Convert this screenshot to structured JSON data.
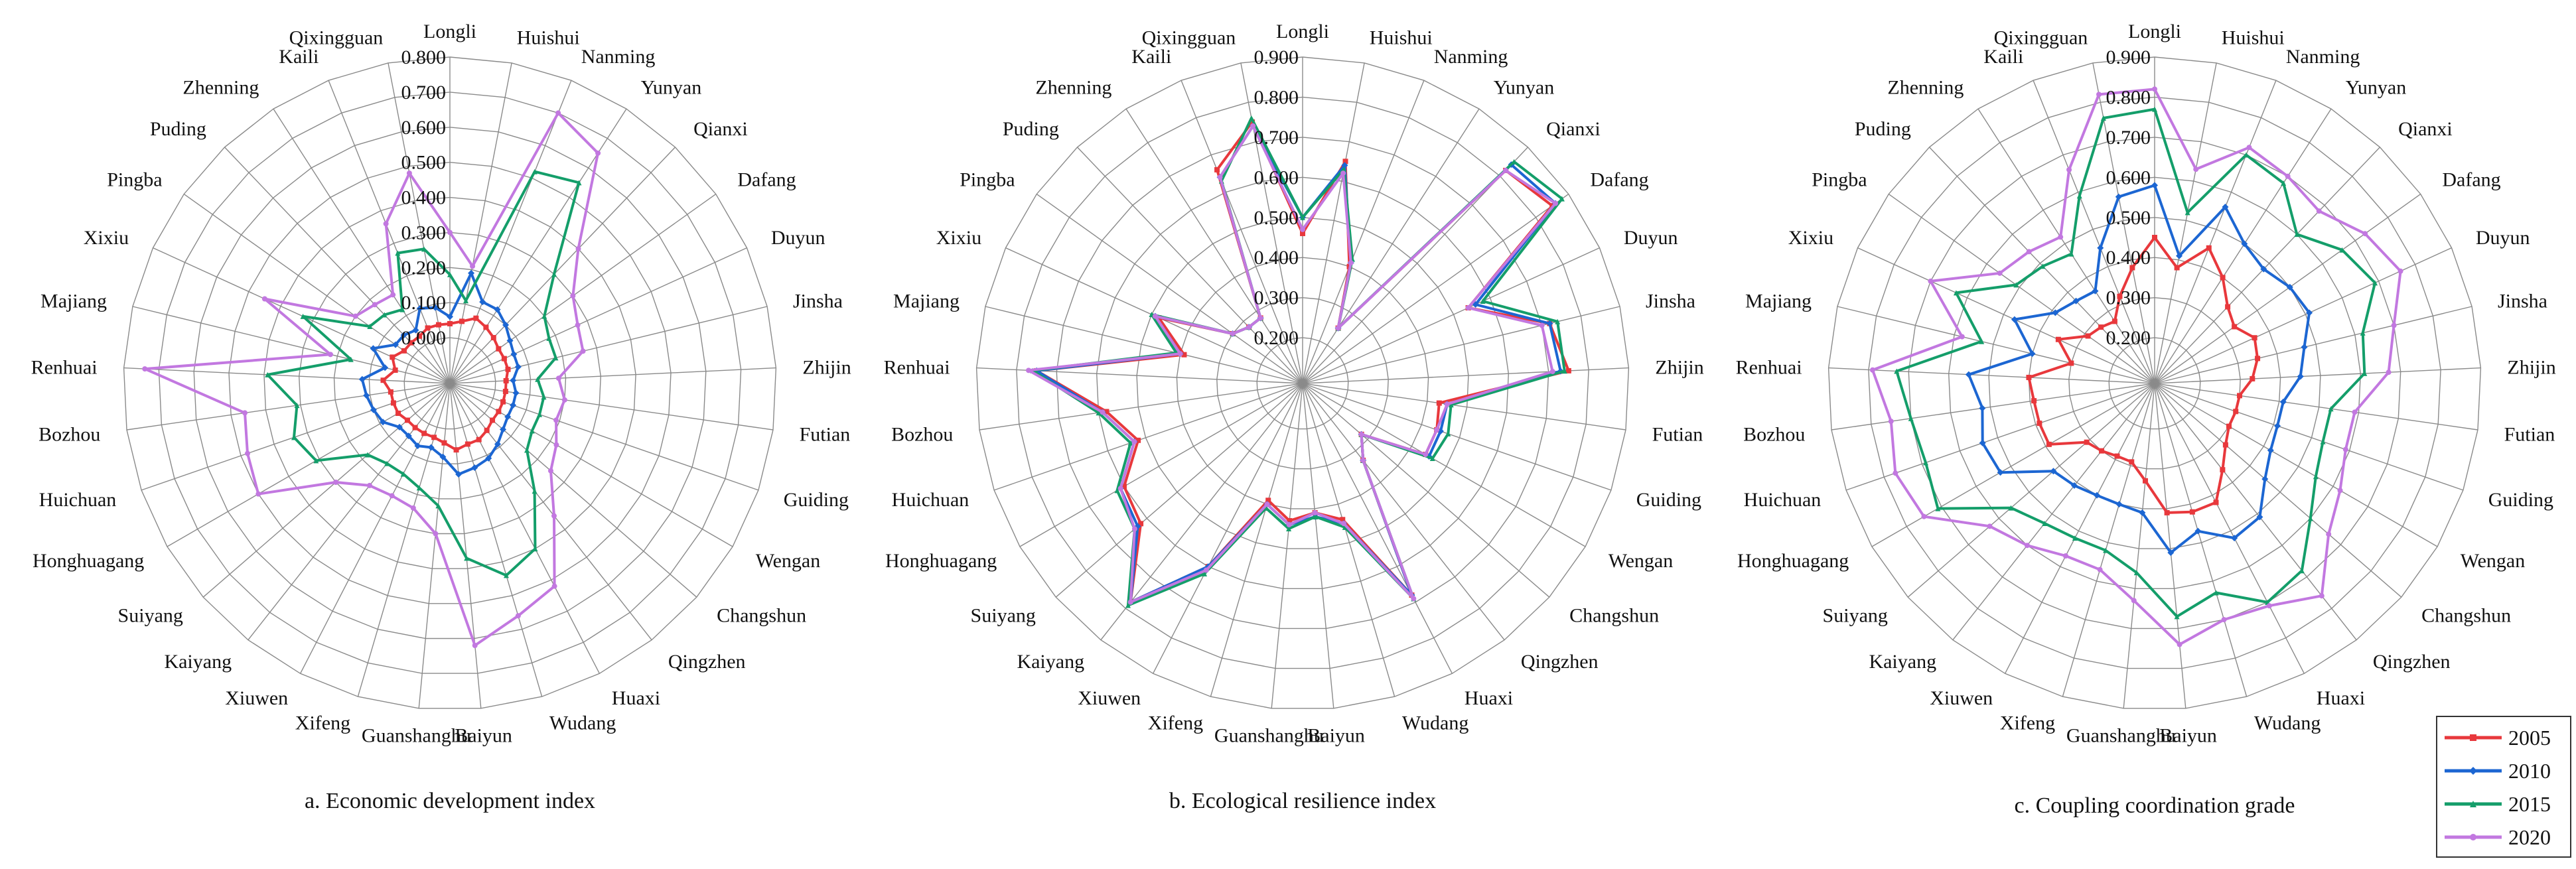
{
  "chart_data": [
    {
      "type": "radar",
      "caption": "a.   Economic development index",
      "rmin": 0,
      "rmax": 0.8,
      "ticks": [
        "0.000",
        "0.100",
        "0.200",
        "0.300",
        "0.400",
        "0.500",
        "0.600",
        "0.700",
        "0.800"
      ],
      "categories": [
        "Longli",
        "Huishui",
        "Nanming",
        "Yunyan",
        "Qianxi",
        "Dafang",
        "Duyun",
        "Jinsha",
        "Zhijin",
        "Futian",
        "Guiding",
        "Wengan",
        "Changshun",
        "Qingzhen",
        "Huaxi",
        "Wudang",
        "Baiyun",
        "Guanshanghu",
        "Xifeng",
        "Xiuwen",
        "Kaiyang",
        "Suiyang",
        "Honghuagang",
        "Huichuan",
        "Bozhou",
        "Renhuai",
        "Majiang",
        "Xixiu",
        "Pingba",
        "Puding",
        "Zhenning",
        "Kaili",
        "Qixingguan"
      ],
      "series": [
        {
          "name": "2005",
          "color": "#e8383c",
          "values": [
            0.04,
            0.05,
            0.07,
            0.06,
            0.05,
            0.04,
            0.04,
            0.04,
            0.03,
            0.03,
            0.03,
            0.03,
            0.03,
            0.04,
            0.05,
            0.05,
            0.06,
            0.04,
            0.03,
            0.03,
            0.03,
            0.03,
            0.04,
            0.04,
            0.04,
            0.06,
            0.03,
            0.05,
            0.03,
            0.03,
            0.03,
            0.04,
            0.04
          ]
        },
        {
          "name": "2010",
          "color": "#1c66d2",
          "values": [
            0.06,
            0.19,
            0.12,
            0.12,
            0.1,
            0.08,
            0.07,
            0.07,
            0.05,
            0.06,
            0.06,
            0.06,
            0.07,
            0.09,
            0.11,
            0.12,
            0.13,
            0.08,
            0.06,
            0.07,
            0.06,
            0.06,
            0.09,
            0.1,
            0.11,
            0.12,
            0.06,
            0.11,
            0.06,
            0.06,
            0.05,
            0.1,
            0.09
          ]
        },
        {
          "name": "2015",
          "color": "#149e6a",
          "values": [
            0.18,
            0.11,
            0.52,
            0.55,
            0.3,
            0.2,
            0.18,
            0.18,
            0.12,
            0.14,
            0.14,
            0.14,
            0.16,
            0.26,
            0.4,
            0.44,
            0.37,
            0.22,
            0.18,
            0.16,
            0.16,
            0.18,
            0.31,
            0.34,
            0.31,
            0.39,
            0.16,
            0.33,
            0.15,
            0.14,
            0.12,
            0.27,
            0.26
          ]
        },
        {
          "name": "2020",
          "color": "#c278e0",
          "values": [
            0.3,
            0.21,
            0.7,
            0.65,
            0.4,
            0.3,
            0.27,
            0.26,
            0.18,
            0.2,
            0.19,
            0.22,
            0.25,
            0.35,
            0.52,
            0.56,
            0.62,
            0.3,
            0.24,
            0.23,
            0.24,
            0.3,
            0.5,
            0.48,
            0.46,
            0.74,
            0.22,
            0.45,
            0.2,
            0.18,
            0.17,
            0.36,
            0.48
          ]
        }
      ]
    },
    {
      "type": "radar",
      "caption": "b.    Ecological resilience index",
      "rmin": 0.2,
      "rmax": 0.9,
      "ticks": [
        "0.200",
        "0.300",
        "0.400",
        "0.500",
        "0.600",
        "0.700",
        "0.800",
        "0.900"
      ],
      "categories": [
        "Longli",
        "Huishui",
        "Nanming",
        "Yunyan",
        "Qianxi",
        "Dafang",
        "Duyun",
        "Jinsha",
        "Zhijin",
        "Futian",
        "Guiding",
        "Wengan",
        "Changshun",
        "Qingzhen",
        "Huaxi",
        "Wudang",
        "Baiyun",
        "Guanshanghu",
        "Xifeng",
        "Xiuwen",
        "Kaiyang",
        "Suiyang",
        "Honghuagang",
        "Huichuan",
        "Bozhou",
        "Renhuai",
        "Majiang",
        "Xixiu",
        "Pingba",
        "Puding",
        "Zhenning",
        "Kaili",
        "Qixingguan"
      ],
      "series": [
        {
          "name": "2005",
          "color": "#e8383c",
          "values": [
            0.46,
            0.65,
            0.4,
            0.25,
            0.82,
            0.85,
            0.54,
            0.72,
            0.75,
            0.43,
            0.44,
            0.44,
            0.28,
            0.33,
            0.68,
            0.44,
            0.41,
            0.43,
            0.39,
            0.6,
            0.78,
            0.62,
            0.6,
            0.52,
            0.58,
            0.75,
            0.39,
            0.48,
            0.3,
            0.28,
            0.28,
            0.66,
            0.75
          ]
        },
        {
          "name": "2010",
          "color": "#1c66d2",
          "values": [
            0.5,
            0.64,
            0.41,
            0.25,
            0.84,
            0.86,
            0.56,
            0.72,
            0.73,
            0.45,
            0.45,
            0.45,
            0.28,
            0.33,
            0.68,
            0.45,
            0.42,
            0.44,
            0.4,
            0.6,
            0.78,
            0.63,
            0.61,
            0.53,
            0.59,
            0.75,
            0.4,
            0.49,
            0.3,
            0.28,
            0.28,
            0.64,
            0.74
          ]
        },
        {
          "name": "2015",
          "color": "#149e6a",
          "values": [
            0.5,
            0.63,
            0.42,
            0.25,
            0.85,
            0.88,
            0.58,
            0.74,
            0.74,
            0.46,
            0.47,
            0.46,
            0.28,
            0.33,
            0.69,
            0.46,
            0.42,
            0.45,
            0.41,
            0.62,
            0.79,
            0.64,
            0.62,
            0.54,
            0.6,
            0.76,
            0.41,
            0.5,
            0.3,
            0.28,
            0.28,
            0.63,
            0.76
          ]
        },
        {
          "name": "2020",
          "color": "#c278e0",
          "values": [
            0.47,
            0.62,
            0.41,
            0.25,
            0.82,
            0.86,
            0.54,
            0.7,
            0.71,
            0.45,
            0.44,
            0.44,
            0.28,
            0.33,
            0.69,
            0.45,
            0.41,
            0.44,
            0.4,
            0.61,
            0.78,
            0.64,
            0.61,
            0.53,
            0.59,
            0.77,
            0.4,
            0.49,
            0.3,
            0.28,
            0.28,
            0.64,
            0.74
          ]
        }
      ]
    },
    {
      "type": "radar",
      "caption": "c.   Coupling coordination grade",
      "rmin": 0.2,
      "rmax": 0.9,
      "ticks": [
        "0.200",
        "0.300",
        "0.400",
        "0.500",
        "0.600",
        "0.700",
        "0.800",
        "0.900"
      ],
      "categories": [
        "Longli",
        "Huishui",
        "Nanming",
        "Yunyan",
        "Qianxi",
        "Dafang",
        "Duyun",
        "Jinsha",
        "Zhijin",
        "Futian",
        "Guiding",
        "Wengan",
        "Changshun",
        "Qingzhen",
        "Huaxi",
        "Wudang",
        "Baiyun",
        "Guanshanghu",
        "Xifeng",
        "Xiuwen",
        "Kaiyang",
        "Suiyang",
        "Honghuagang",
        "Huichuan",
        "Bozhou",
        "Renhuai",
        "Majiang",
        "Xixiu",
        "Pingba",
        "Puding",
        "Zhenning",
        "Kaili",
        "Qixingguan"
      ],
      "series": [
        {
          "name": "2005",
          "color": "#e8383c",
          "values": [
            0.45,
            0.38,
            0.45,
            0.4,
            0.35,
            0.33,
            0.36,
            0.35,
            0.33,
            0.3,
            0.3,
            0.3,
            0.32,
            0.36,
            0.42,
            0.42,
            0.41,
            0.33,
            0.29,
            0.29,
            0.3,
            0.31,
            0.39,
            0.39,
            0.39,
            0.4,
            0.3,
            0.35,
            0.29,
            0.28,
            0.27,
            0.32,
            0.38
          ]
        },
        {
          "name": "2010",
          "color": "#1c66d2",
          "values": [
            0.58,
            0.41,
            0.56,
            0.5,
            0.48,
            0.5,
            0.51,
            0.47,
            0.45,
            0.41,
            0.41,
            0.42,
            0.45,
            0.51,
            0.52,
            0.47,
            0.51,
            0.41,
            0.4,
            0.4,
            0.41,
            0.42,
            0.53,
            0.54,
            0.52,
            0.55,
            0.4,
            0.47,
            0.39,
            0.37,
            0.36,
            0.45,
            0.56
          ]
        },
        {
          "name": "2015",
          "color": "#149e6a",
          "values": [
            0.77,
            0.52,
            0.7,
            0.68,
            0.6,
            0.66,
            0.69,
            0.62,
            0.61,
            0.53,
            0.53,
            0.55,
            0.6,
            0.68,
            0.7,
            0.63,
            0.67,
            0.56,
            0.52,
            0.52,
            0.53,
            0.56,
            0.71,
            0.69,
            0.7,
            0.73,
            0.53,
            0.63,
            0.51,
            0.49,
            0.47,
            0.59,
            0.76
          ]
        },
        {
          "name": "2020",
          "color": "#c278e0",
          "values": [
            0.82,
            0.63,
            0.72,
            0.7,
            0.68,
            0.73,
            0.76,
            0.7,
            0.67,
            0.59,
            0.59,
            0.62,
            0.66,
            0.76,
            0.71,
            0.7,
            0.74,
            0.63,
            0.57,
            0.57,
            0.6,
            0.63,
            0.75,
            0.77,
            0.75,
            0.79,
            0.58,
            0.7,
            0.56,
            0.54,
            0.52,
            0.66,
            0.82
          ]
        }
      ]
    }
  ],
  "legend": {
    "items": [
      {
        "label": "2005",
        "color": "#e8383c"
      },
      {
        "label": "2010",
        "color": "#1c66d2"
      },
      {
        "label": "2015",
        "color": "#149e6a"
      },
      {
        "label": "2020",
        "color": "#c278e0"
      }
    ]
  }
}
